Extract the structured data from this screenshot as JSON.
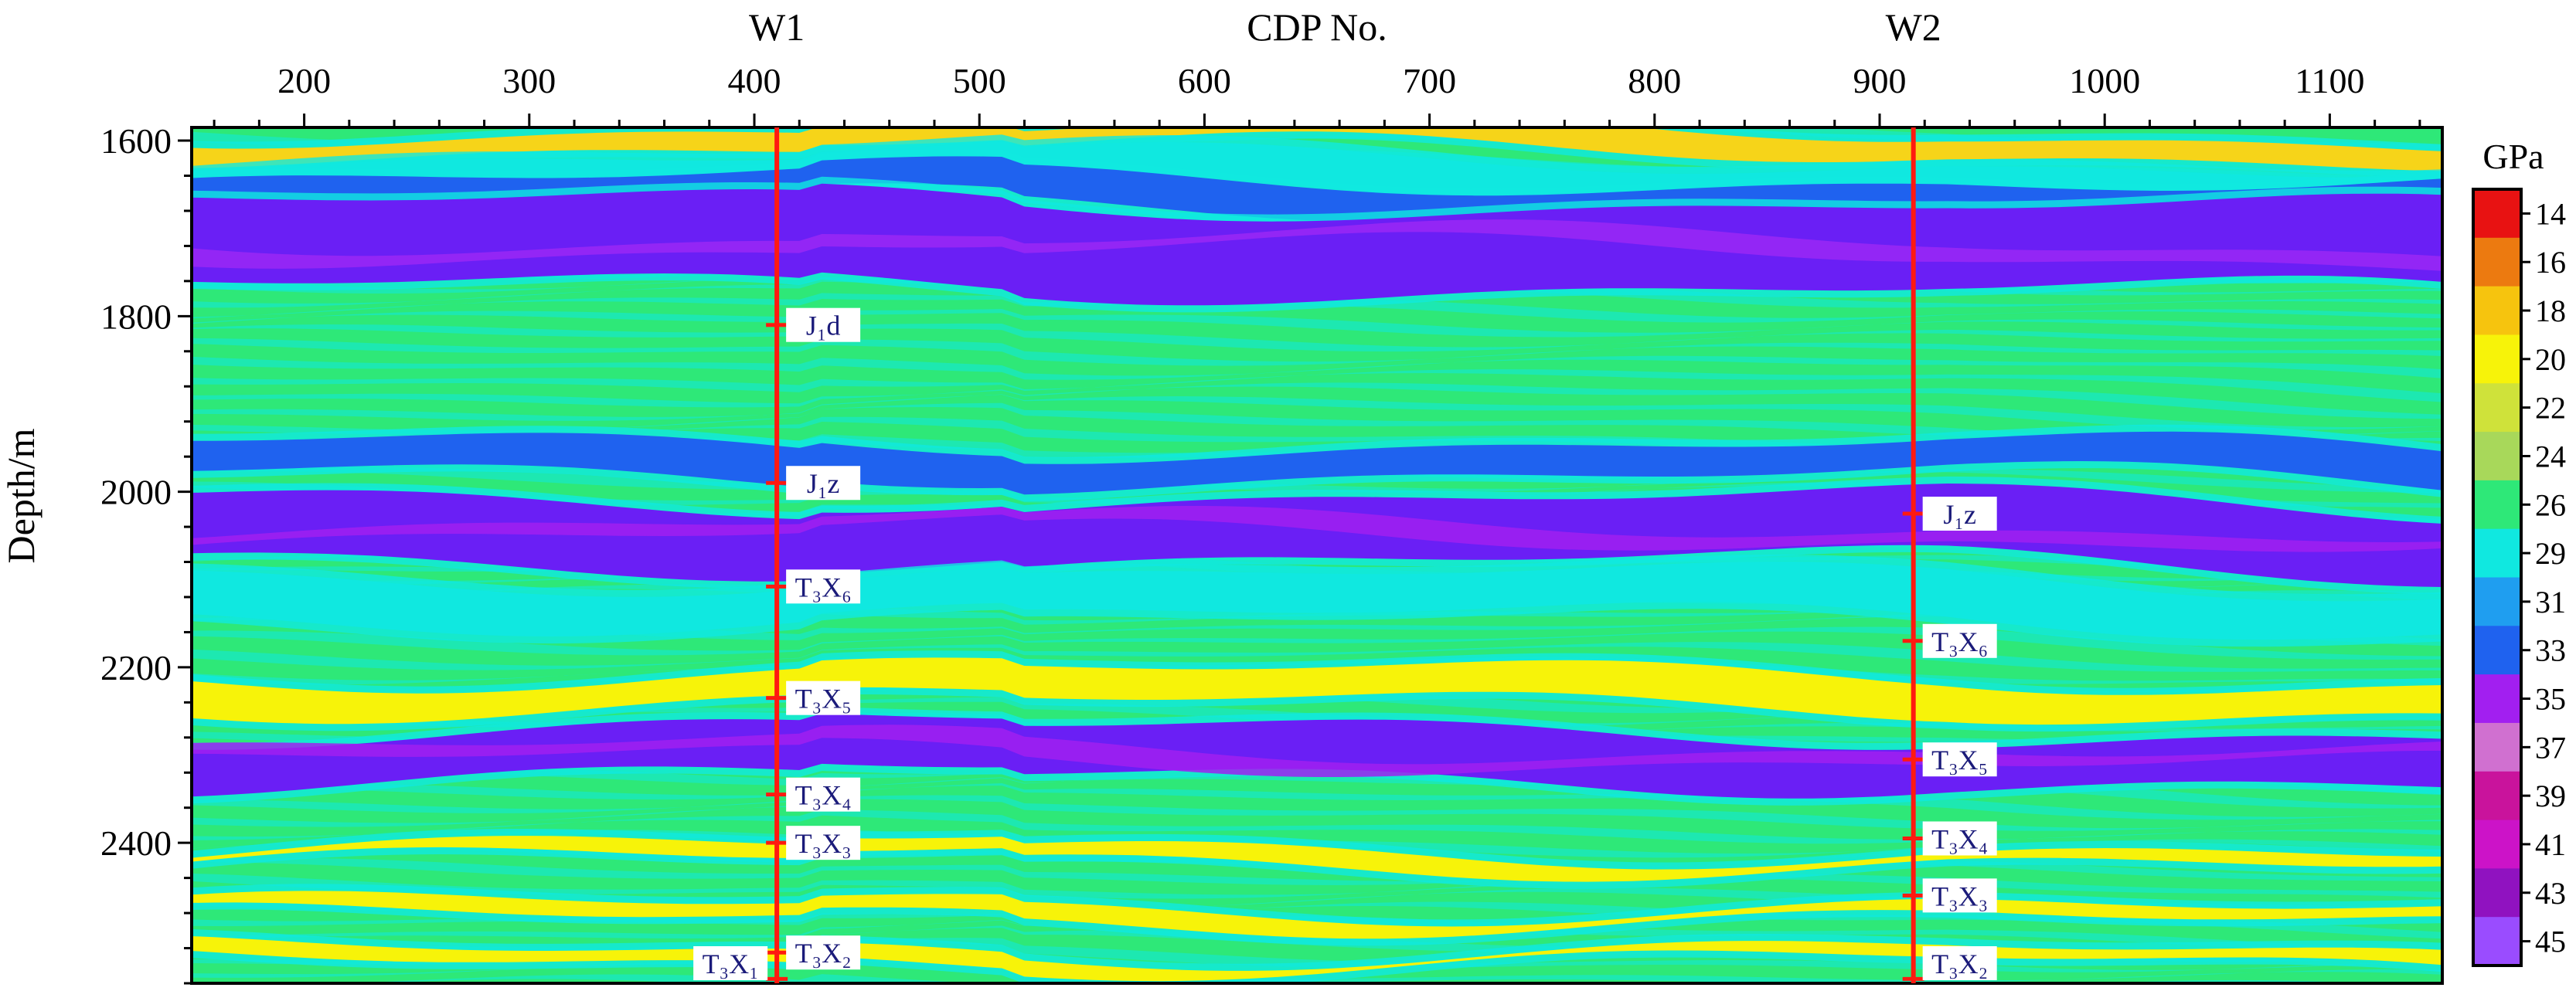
{
  "chart_data": {
    "type": "heatmap",
    "title": "",
    "xlabel": "CDP No.",
    "ylabel": "Depth/m",
    "xlim": [
      150,
      1150
    ],
    "ylim": [
      1585,
      2560
    ],
    "y_inverted": true,
    "x_ticks": [
      200,
      300,
      400,
      500,
      600,
      700,
      800,
      900,
      1000,
      1100
    ],
    "y_ticks": [
      1600,
      1800,
      2000,
      2200,
      2400
    ],
    "colorbar": {
      "unit": "GPa",
      "labels": [
        "14",
        "16",
        "18",
        "20",
        "22",
        "24",
        "26",
        "29",
        "31",
        "33",
        "35",
        "37",
        "39",
        "41",
        "43",
        "45"
      ],
      "colors": [
        "#e81212",
        "#ec7a10",
        "#f6c40e",
        "#f7f309",
        "#cfe23a",
        "#a8d85a",
        "#2ee878",
        "#10e8e0",
        "#1f9ef0",
        "#1f62ef",
        "#a21ff0",
        "#d070d0",
        "#c9139c",
        "#cc13c8",
        "#9012c0",
        "#9a4cff"
      ]
    },
    "wells": [
      {
        "name": "W1",
        "cdp": 410,
        "horizons": [
          {
            "label": "J₁d",
            "depth": 1810,
            "side": "right"
          },
          {
            "label": "J₁z",
            "depth": 1990,
            "side": "right"
          },
          {
            "label": "T₃X₆",
            "depth": 2108,
            "side": "right"
          },
          {
            "label": "T₃X₅",
            "depth": 2235,
            "side": "right"
          },
          {
            "label": "T₃X₄",
            "depth": 2345,
            "side": "right"
          },
          {
            "label": "T₃X₃",
            "depth": 2400,
            "side": "right"
          },
          {
            "label": "T₃X₂",
            "depth": 2525,
            "side": "right"
          },
          {
            "label": "T₃X₁",
            "depth": 2555,
            "side": "left"
          }
        ]
      },
      {
        "name": "W2",
        "cdp": 915,
        "horizons": [
          {
            "label": "J₁z",
            "depth": 2025,
            "side": "right"
          },
          {
            "label": "T₃X₆",
            "depth": 2170,
            "side": "right"
          },
          {
            "label": "T₃X₅",
            "depth": 2305,
            "side": "right"
          },
          {
            "label": "T₃X₄",
            "depth": 2395,
            "side": "right"
          },
          {
            "label": "T₃X₃",
            "depth": 2460,
            "side": "right"
          },
          {
            "label": "T₃X₂",
            "depth": 2555,
            "side": "right"
          }
        ]
      }
    ],
    "layers": [
      {
        "name": "background",
        "color": "#2ee878"
      },
      {
        "name": "top-yellow",
        "color": "#f6d419",
        "base_depth": 1600
      },
      {
        "name": "upper-cyan",
        "color": "#10e8e0",
        "base_depth": 1640
      },
      {
        "name": "upper-blue",
        "color": "#1f62ef",
        "base_depth": 1660
      },
      {
        "name": "upper-thick-purple",
        "color": "#6a1ff5",
        "base_depth": 1720
      },
      {
        "name": "mid-blue",
        "color": "#1f62ef",
        "base_depth": 1965
      },
      {
        "name": "mid-thick-purple",
        "color": "#6a1ff5",
        "base_depth": 2045
      },
      {
        "name": "mid-cyan",
        "color": "#10e8e0",
        "base_depth": 2120
      },
      {
        "name": "yellow-band",
        "color": "#f7f309",
        "base_depth": 2225
      },
      {
        "name": "lower-purple",
        "color": "#6a1ff5",
        "base_depth": 2300
      },
      {
        "name": "lower-yellow-1",
        "color": "#f7f309",
        "base_depth": 2415
      },
      {
        "name": "lower-yellow-2",
        "color": "#f7f309",
        "base_depth": 2480
      },
      {
        "name": "lower-yellow-3",
        "color": "#f7f309",
        "base_depth": 2530
      }
    ]
  },
  "labels": {
    "x_axis_title": "CDP No.",
    "y_axis_title": "Depth/m",
    "colorbar_unit": "GPa"
  }
}
